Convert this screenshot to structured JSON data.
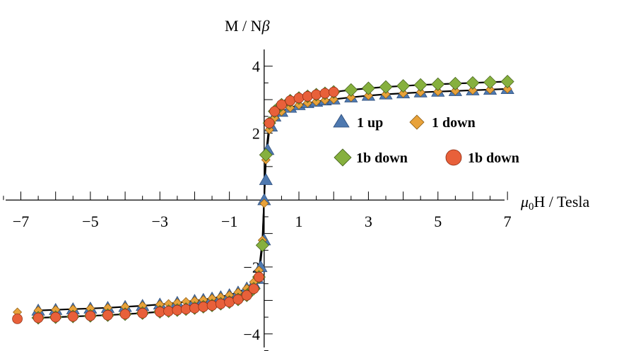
{
  "chart_data": {
    "type": "scatter",
    "xlabel_symbol": "μ",
    "xlabel_sub": "0",
    "xlabel_rest": "H / Tesla",
    "ylabel_main": "M / N",
    "ylabel_sym": "β",
    "xlim": [
      -7.6,
      7.2
    ],
    "ylim": [
      -4.3,
      4.5
    ],
    "x_ticks": [
      {
        "v": -7,
        "label": "−7"
      },
      {
        "v": -5,
        "label": "−5"
      },
      {
        "v": -3,
        "label": "−3"
      },
      {
        "v": -1,
        "label": "−1"
      },
      {
        "v": 1,
        "label": "1"
      },
      {
        "v": 3,
        "label": "3"
      },
      {
        "v": 5,
        "label": "5"
      },
      {
        "v": 7,
        "label": "7"
      }
    ],
    "y_ticks": [
      {
        "v": 4,
        "label": "4"
      },
      {
        "v": 2,
        "label": "2"
      },
      {
        "v": -2,
        "label": "−2"
      },
      {
        "v": -4,
        "label": "−4"
      }
    ],
    "grid": false,
    "legend_position": "right",
    "fit_curves": [
      {
        "name": "",
        "color": "#000000",
        "x": [
          -6.5,
          -6,
          -5.5,
          -5,
          -4.5,
          -4,
          -3.5,
          -3,
          -2.5,
          -2,
          -1.5,
          -1,
          -0.75,
          -0.5,
          -0.3,
          -0.15,
          -0.05,
          0,
          0.05,
          0.15,
          0.3,
          0.5,
          0.75,
          1,
          1.5,
          2,
          2.5,
          3,
          3.5,
          4,
          4.5,
          5,
          5.5,
          6,
          6.5,
          7
        ],
        "y": [
          -3.3,
          -3.28,
          -3.26,
          -3.24,
          -3.22,
          -3.19,
          -3.16,
          -3.12,
          -3.07,
          -3.01,
          -2.94,
          -2.84,
          -2.76,
          -2.64,
          -2.45,
          -2.1,
          -1.2,
          0,
          1.2,
          2.1,
          2.45,
          2.64,
          2.76,
          2.84,
          2.94,
          3.01,
          3.07,
          3.12,
          3.16,
          3.19,
          3.22,
          3.24,
          3.26,
          3.28,
          3.3,
          3.32
        ]
      },
      {
        "name": "",
        "color": "#000000",
        "x": [
          -6.5,
          -6,
          -5.5,
          -5,
          -4.5,
          -4,
          -3.5,
          -3,
          -2.5,
          -2,
          -1.5,
          -1,
          -0.75,
          -0.5,
          -0.3,
          -0.15,
          -0.05,
          0,
          0.05,
          0.15,
          0.3,
          0.5,
          0.75,
          1,
          1.5,
          2,
          2.5,
          3,
          3.5,
          4,
          4.5,
          5,
          5.5,
          6,
          6.5,
          7
        ],
        "y": [
          -3.52,
          -3.5,
          -3.48,
          -3.46,
          -3.44,
          -3.41,
          -3.38,
          -3.34,
          -3.29,
          -3.23,
          -3.15,
          -3.05,
          -2.97,
          -2.85,
          -2.65,
          -2.3,
          -1.35,
          0,
          1.35,
          2.3,
          2.65,
          2.85,
          2.97,
          3.05,
          3.15,
          3.23,
          3.29,
          3.34,
          3.38,
          3.41,
          3.44,
          3.46,
          3.48,
          3.5,
          3.52,
          3.54
        ]
      }
    ],
    "series": [
      {
        "name": "1 up",
        "marker": "triangle",
        "color": "#4e79b0",
        "size": 9,
        "x": [
          -6.5,
          -6,
          -5.5,
          -5,
          -4.5,
          -4,
          -3.5,
          -3,
          -2.5,
          -2,
          -1.75,
          -1.5,
          -1.25,
          -1,
          -0.75,
          -0.5,
          -0.3,
          -0.2,
          -0.1,
          0,
          0,
          0.05,
          0.1,
          0.2,
          0.3,
          0.5,
          0.75,
          1,
          1.25,
          1.5,
          1.75,
          2,
          2.5,
          3,
          3.5,
          4,
          4.5,
          5,
          5.5,
          6,
          6.5,
          7
        ],
        "y": [
          -3.3,
          -3.28,
          -3.26,
          -3.24,
          -3.22,
          -3.19,
          -3.16,
          -3.12,
          -3.07,
          -3.01,
          -2.98,
          -2.94,
          -2.9,
          -2.84,
          -2.76,
          -2.64,
          -2.5,
          -2.35,
          -2.0,
          -1.2,
          0,
          0.6,
          1.5,
          2.2,
          2.5,
          2.64,
          2.76,
          2.84,
          2.9,
          2.94,
          2.98,
          3.01,
          3.07,
          3.12,
          3.16,
          3.19,
          3.22,
          3.24,
          3.26,
          3.28,
          3.3,
          3.32
        ]
      },
      {
        "name": "1 down",
        "marker": "diamond",
        "color": "#e8a23a",
        "size": 6,
        "x": [
          -7.1,
          -6.5,
          -6,
          -5.5,
          -5,
          -4.5,
          -4,
          -3.5,
          -3,
          -2.75,
          -2.5,
          -2.25,
          -2,
          -1.75,
          -1.5,
          -1.25,
          -1,
          -0.75,
          -0.5,
          -0.3,
          -0.15,
          -0.05,
          0,
          0.05,
          0.15,
          0.3,
          0.5,
          0.75,
          1,
          1.25,
          1.5,
          1.75,
          2,
          2.5,
          3,
          3.5,
          4,
          4.5,
          5,
          5.5,
          6,
          6.5,
          7
        ],
        "y": [
          -3.35,
          -3.3,
          -3.28,
          -3.26,
          -3.24,
          -3.22,
          -3.19,
          -3.16,
          -3.12,
          -3.1,
          -3.07,
          -3.04,
          -3.01,
          -2.98,
          -2.94,
          -2.9,
          -2.84,
          -2.76,
          -2.64,
          -2.45,
          -2.1,
          -1.2,
          -0.1,
          1.2,
          2.1,
          2.45,
          2.64,
          2.76,
          2.84,
          2.9,
          2.94,
          2.98,
          3.01,
          3.07,
          3.12,
          3.16,
          3.19,
          3.22,
          3.24,
          3.26,
          3.28,
          3.3,
          3.32
        ]
      },
      {
        "name": "1b down",
        "marker": "diamond",
        "color": "#86b03e",
        "size": 9,
        "x": [
          -6.5,
          -6,
          -5.5,
          -5,
          -4.5,
          -4,
          -3.5,
          -3,
          -2.75,
          -2.5,
          -2.25,
          -2,
          -1.75,
          -1.5,
          -1.25,
          -1,
          -0.75,
          -0.5,
          -0.3,
          -0.15,
          -0.05,
          0.05,
          0.15,
          0.3,
          0.5,
          0.75,
          1,
          1.25,
          1.5,
          1.75,
          2,
          2.5,
          3,
          3.5,
          4,
          4.5,
          5,
          5.5,
          6,
          6.5,
          7
        ],
        "y": [
          -3.52,
          -3.5,
          -3.48,
          -3.46,
          -3.44,
          -3.41,
          -3.38,
          -3.34,
          -3.32,
          -3.29,
          -3.26,
          -3.23,
          -3.19,
          -3.15,
          -3.1,
          -3.05,
          -2.97,
          -2.85,
          -2.65,
          -2.3,
          -1.35,
          1.35,
          2.3,
          2.65,
          2.85,
          2.97,
          3.05,
          3.1,
          3.15,
          3.19,
          3.23,
          3.29,
          3.34,
          3.38,
          3.41,
          3.44,
          3.46,
          3.48,
          3.5,
          3.52,
          3.54
        ]
      },
      {
        "name": "1b down",
        "marker": "circle",
        "color": "#e8603a",
        "size": 7,
        "x": [
          -7.1,
          -6.5,
          -6,
          -5.5,
          -5,
          -4.5,
          -4,
          -3.5,
          -3,
          -2.75,
          -2.5,
          -2.25,
          -2,
          -1.75,
          -1.5,
          -1.25,
          -1,
          -0.75,
          -0.5,
          -0.3,
          -0.15,
          0.15,
          0.3,
          0.5,
          0.75,
          1,
          1.25,
          1.5,
          1.75,
          2
        ],
        "y": [
          -3.55,
          -3.52,
          -3.5,
          -3.48,
          -3.46,
          -3.44,
          -3.41,
          -3.38,
          -3.34,
          -3.32,
          -3.29,
          -3.26,
          -3.23,
          -3.19,
          -3.15,
          -3.1,
          -3.05,
          -2.97,
          -2.85,
          -2.65,
          -2.3,
          2.3,
          2.65,
          2.85,
          2.97,
          3.05,
          3.1,
          3.15,
          3.19,
          3.23
        ]
      }
    ]
  }
}
